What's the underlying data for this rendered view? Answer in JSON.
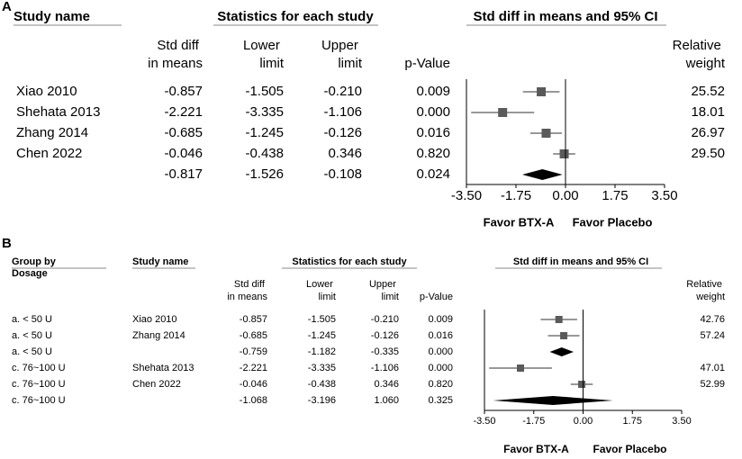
{
  "chart_data": [
    {
      "type": "forest",
      "panel": "A",
      "study_header": "Study name",
      "stats_header": "Statistics for each study",
      "plot_header": "Std diff in means and 95% CI",
      "studies": [
        "Xiao 2010",
        "Shehata 2013",
        "Zhang 2014",
        "Chen 2022",
        null
      ],
      "series": [
        {
          "name": "Std diff in means",
          "values": [
            -0.857,
            -2.221,
            -0.685,
            -0.046,
            -0.817
          ],
          "value_labels": [
            "-0.857",
            "-2.221",
            "-0.685",
            "-0.046",
            "-0.817"
          ]
        },
        {
          "name": "Lower limit",
          "values": [
            -1.505,
            -3.335,
            -1.245,
            -0.438,
            -1.526
          ],
          "value_labels": [
            "-1.505",
            "-3.335",
            "-1.245",
            "-0.438",
            "-1.526"
          ]
        },
        {
          "name": "Upper limit",
          "values": [
            -0.21,
            -1.106,
            -0.126,
            0.346,
            -0.108
          ],
          "value_labels": [
            "-0.210",
            "-1.106",
            "-0.126",
            "0.346",
            "-0.108"
          ]
        },
        {
          "name": "p-Value",
          "values": [
            0.009,
            0.0,
            0.016,
            0.82,
            0.024
          ],
          "value_labels": [
            "0.009",
            "0.000",
            "0.016",
            "0.820",
            "0.024"
          ]
        },
        {
          "name": "Relative weight",
          "values": [
            25.52,
            18.01,
            26.97,
            29.5,
            null
          ],
          "value_labels": [
            "25.52",
            "18.01",
            "26.97",
            "29.50",
            null
          ]
        }
      ],
      "xlim": [
        -3.5,
        3.5
      ],
      "xticks": [
        {
          "value": -3.5,
          "label": "-3.50"
        },
        {
          "value": -1.75,
          "label": "-1.75"
        },
        {
          "value": 0,
          "label": "0.00"
        },
        {
          "value": 1.75,
          "label": "1.75"
        },
        {
          "value": 3.5,
          "label": "3.50"
        }
      ],
      "x_label_left": "Favor BTX-A",
      "x_label_right": "Favor Placebo",
      "color": "#5a5a5a",
      "summary_color": "#000000"
    },
    {
      "type": "forest",
      "panel": "B",
      "group_header": [
        "Group by",
        "Dosage"
      ],
      "study_header": "Study name",
      "stats_header": "Statistics for each study",
      "plot_header": "Std diff in means and 95% CI",
      "groups": [
        "a. < 50 U",
        "a. < 50 U",
        "a. < 50 U",
        "c. 76~100 U",
        "c. 76~100 U",
        "c. 76~100 U"
      ],
      "studies": [
        "Xiao 2010",
        "Zhang 2014",
        null,
        "Shehata 2013",
        "Chen 2022",
        null
      ],
      "series": [
        {
          "name": "Std diff in means",
          "values": [
            -0.857,
            -0.685,
            -0.759,
            -2.221,
            -0.046,
            -1.068
          ],
          "value_labels": [
            "-0.857",
            "-0.685",
            "-0.759",
            "-2.221",
            "-0.046",
            "-1.068"
          ]
        },
        {
          "name": "Lower limit",
          "values": [
            -1.505,
            -1.245,
            -1.182,
            -3.335,
            -0.438,
            -3.196
          ],
          "value_labels": [
            "-1.505",
            "-1.245",
            "-1.182",
            "-3.335",
            "-0.438",
            "-3.196"
          ]
        },
        {
          "name": "Upper limit",
          "values": [
            -0.21,
            -0.126,
            -0.335,
            -1.106,
            0.346,
            1.06
          ],
          "value_labels": [
            "-0.210",
            "-0.126",
            "-0.335",
            "-1.106",
            "0.346",
            "1.060"
          ]
        },
        {
          "name": "p-Value",
          "values": [
            0.009,
            0.016,
            0.0,
            0.0,
            0.82,
            0.325
          ],
          "value_labels": [
            "0.009",
            "0.016",
            "0.000",
            "0.000",
            "0.820",
            "0.325"
          ]
        },
        {
          "name": "Relative weight",
          "values": [
            42.76,
            57.24,
            null,
            47.01,
            52.99,
            null
          ],
          "value_labels": [
            "42.76",
            "57.24",
            null,
            "47.01",
            "52.99",
            null
          ]
        }
      ],
      "xlim": [
        -3.5,
        3.5
      ],
      "xticks": [
        {
          "value": -3.5,
          "label": "-3.50"
        },
        {
          "value": -1.75,
          "label": "-1.75"
        },
        {
          "value": 0,
          "label": "0.00"
        },
        {
          "value": 1.75,
          "label": "1.75"
        },
        {
          "value": 3.5,
          "label": "3.50"
        }
      ],
      "x_label_left": "Favor BTX-A",
      "x_label_right": "Favor Placebo",
      "color": "#5a5a5a",
      "summary_color": "#000000"
    }
  ]
}
